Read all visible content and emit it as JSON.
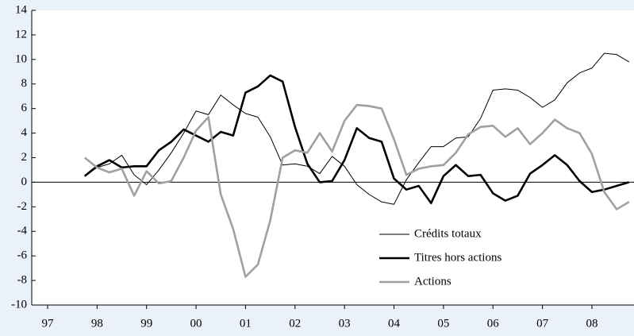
{
  "chart_data": {
    "type": "line",
    "x": [
      1998.25,
      1998.5,
      1998.75,
      1999,
      1999.25,
      1999.5,
      1999.75,
      2000,
      2000.25,
      2000.5,
      2000.75,
      2001,
      2001.25,
      2001.5,
      2001.75,
      2002,
      2002.25,
      2002.5,
      2002.75,
      2003,
      2003.25,
      2003.5,
      2003.75,
      2004,
      2004.25,
      2004.5,
      2004.75,
      2005,
      2005.25,
      2005.5,
      2005.75,
      2006,
      2006.25,
      2006.5,
      2006.75,
      2007,
      2007.25,
      2007.5,
      2007.75,
      2008,
      2008.25,
      2008.5,
      2008.75,
      2009,
      2009.25
    ],
    "series": [
      {
        "name": "Crédits totaux",
        "color": "#000000",
        "line_width": 1,
        "values": [
          0.5,
          1.2,
          1.5,
          2.2,
          0.6,
          -0.2,
          1.0,
          2.4,
          4.0,
          5.8,
          5.5,
          7.1,
          6.3,
          5.6,
          5.3,
          3.7,
          1.4,
          1.5,
          1.3,
          0.7,
          2.1,
          1.3,
          -0.2,
          -1.0,
          -1.6,
          -1.8,
          0.2,
          1.6,
          2.9,
          2.9,
          3.6,
          3.7,
          5.2,
          7.5,
          7.6,
          7.5,
          6.9,
          6.1,
          6.7,
          8.1,
          8.9,
          9.3,
          10.5,
          10.4,
          9.8
        ]
      },
      {
        "name": "Titres hors actions",
        "color": "#000000",
        "line_width": 2.6,
        "values": [
          0.5,
          1.3,
          1.8,
          1.2,
          1.3,
          1.3,
          2.6,
          3.3,
          4.3,
          3.8,
          3.3,
          4.1,
          3.8,
          7.3,
          7.8,
          8.7,
          8.2,
          4.5,
          1.5,
          0.0,
          0.1,
          1.8,
          4.4,
          3.6,
          3.3,
          0.3,
          -0.6,
          -0.3,
          -1.7,
          0.5,
          1.4,
          0.5,
          0.6,
          -0.9,
          -1.5,
          -1.1,
          0.7,
          1.4,
          2.2,
          1.4,
          0.1,
          -0.8,
          -0.6,
          -0.3,
          0.0
        ]
      },
      {
        "name": "Actions",
        "color": "#a0a0a0",
        "line_width": 2.6,
        "values": [
          2.0,
          1.2,
          0.8,
          1.1,
          -1.1,
          0.9,
          -0.1,
          0.1,
          2.0,
          4.2,
          5.3,
          -1.0,
          -3.8,
          -7.7,
          -6.7,
          -3.1,
          2.0,
          2.6,
          2.4,
          4.0,
          2.5,
          5.0,
          6.3,
          6.2,
          6.0,
          3.5,
          0.6,
          1.1,
          1.3,
          1.4,
          2.4,
          3.9,
          4.5,
          4.6,
          3.7,
          4.4,
          3.1,
          4.0,
          5.1,
          4.4,
          4.0,
          2.3,
          -0.8,
          -2.2,
          -1.6
        ]
      }
    ],
    "xlim": [
      1997.18,
      2009.35
    ],
    "xticks": [
      {
        "value": 1997.5,
        "label": "97"
      },
      {
        "value": 1998.5,
        "label": "98"
      },
      {
        "value": 1999.5,
        "label": "99"
      },
      {
        "value": 2000.5,
        "label": "00"
      },
      {
        "value": 2001.5,
        "label": "01"
      },
      {
        "value": 2002.5,
        "label": "02"
      },
      {
        "value": 2003.5,
        "label": "03"
      },
      {
        "value": 2004.5,
        "label": "04"
      },
      {
        "value": 2005.5,
        "label": "05"
      },
      {
        "value": 2006.5,
        "label": "06"
      },
      {
        "value": 2007.5,
        "label": "07"
      },
      {
        "value": 2008.5,
        "label": "08"
      }
    ],
    "ylim": [
      -10,
      14
    ],
    "yticks": [
      -10,
      -8,
      -6,
      -4,
      -2,
      0,
      2,
      4,
      6,
      8,
      10,
      12,
      14
    ],
    "zero_line": true,
    "legend": "lower right"
  }
}
